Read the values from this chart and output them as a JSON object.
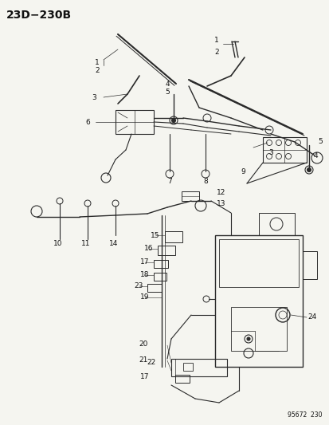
{
  "title": "23D−230B",
  "footer": "95672  230",
  "bg_color": "#f5f5f0",
  "line_color": "#2a2a2a",
  "text_color": "#111111",
  "title_fontsize": 10,
  "label_fontsize": 6.0,
  "footer_fontsize": 5.5,
  "figsize": [
    4.14,
    5.33
  ],
  "dpi": 100
}
